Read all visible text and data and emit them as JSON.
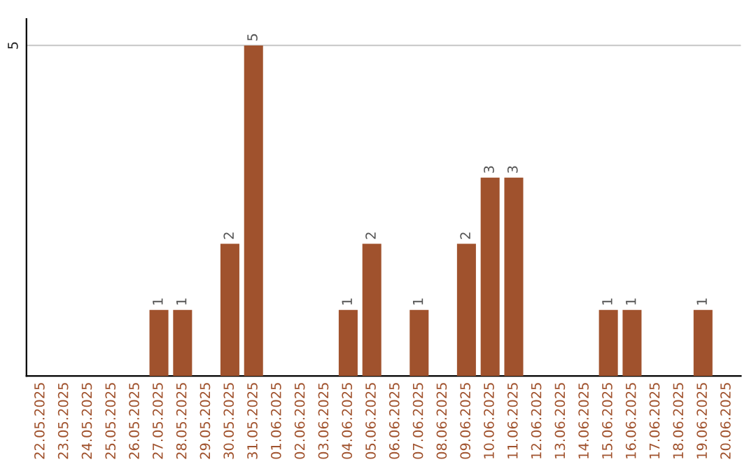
{
  "chart_data": {
    "type": "bar",
    "categories": [
      "22.05.2025",
      "23.05.2025",
      "24.05.2025",
      "25.05.2025",
      "26.05.2025",
      "27.05.2025",
      "28.05.2025",
      "29.05.2025",
      "30.05.2025",
      "31.05.2025",
      "01.06.2025",
      "02.06.2025",
      "03.06.2025",
      "04.06.2025",
      "05.06.2025",
      "06.06.2025",
      "07.06.2025",
      "08.06.2025",
      "09.06.2025",
      "10.06.2025",
      "11.06.2025",
      "12.06.2025",
      "13.06.2025",
      "14.06.2025",
      "15.06.2025",
      "16.06.2025",
      "17.06.2025",
      "18.06.2025",
      "19.06.2025",
      "20.06.2025"
    ],
    "values": [
      0,
      0,
      0,
      0,
      0,
      1,
      1,
      0,
      2,
      5,
      0,
      0,
      0,
      1,
      2,
      0,
      1,
      0,
      2,
      3,
      3,
      0,
      0,
      0,
      1,
      1,
      0,
      0,
      1,
      0
    ],
    "value_labels": [
      null,
      null,
      null,
      null,
      null,
      "1",
      "1",
      null,
      "2",
      "5",
      null,
      null,
      null,
      "1",
      "2",
      null,
      "1",
      null,
      "2",
      "3",
      "3",
      null,
      null,
      null,
      "1",
      "1",
      null,
      null,
      "1",
      null
    ],
    "color": "#a0522d",
    "ylim": [
      0,
      5.4
    ],
    "yticks": [
      5
    ],
    "grid": "y"
  }
}
